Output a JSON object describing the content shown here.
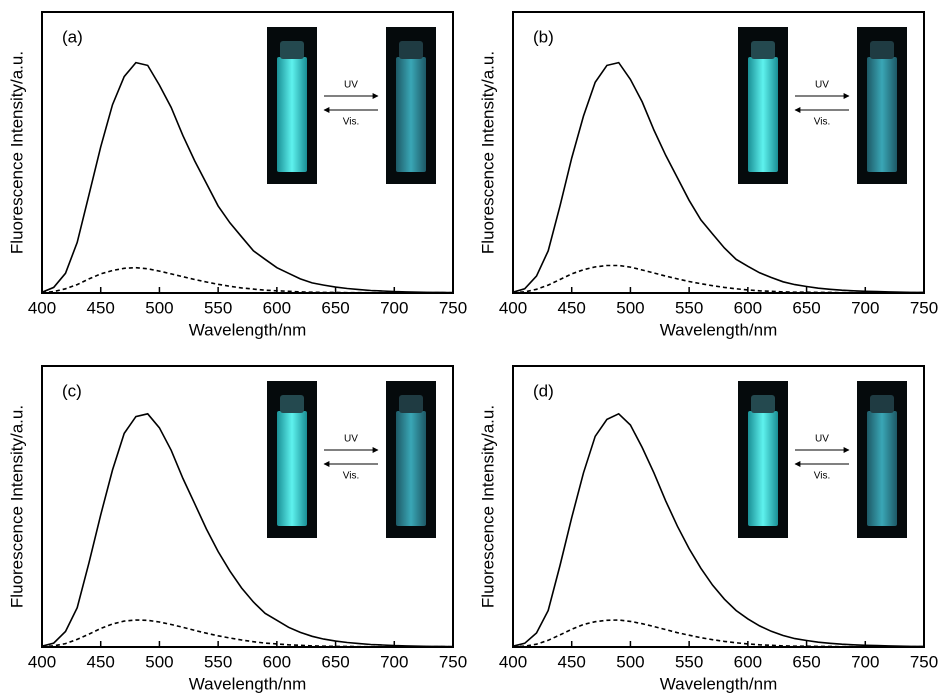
{
  "chart_data": [
    {
      "type": "line",
      "panel_label": "(a)",
      "xlabel": "Wavelength/nm",
      "ylabel": "Fluorescence Intensity/a.u.",
      "inset": {
        "forward": "UV",
        "backward": "Vis."
      },
      "x": [
        400,
        410,
        420,
        430,
        440,
        450,
        460,
        470,
        480,
        490,
        500,
        510,
        520,
        530,
        540,
        550,
        560,
        570,
        580,
        590,
        600,
        610,
        620,
        630,
        640,
        650,
        660,
        670,
        680,
        690,
        700,
        710,
        720,
        730,
        740,
        750
      ],
      "xlim": [
        400,
        750
      ],
      "xticks": [
        400,
        450,
        500,
        550,
        600,
        650,
        700,
        750
      ],
      "ylim": [
        0,
        100
      ],
      "series": [
        {
          "color": "#000000",
          "dashed": false,
          "values": [
            0.3,
            2,
            7,
            18,
            35,
            52,
            67,
            77,
            82,
            81,
            74,
            66,
            56,
            47,
            39,
            31,
            25,
            20,
            15,
            12,
            9,
            7,
            5,
            3.6,
            2.8,
            2.1,
            1.6,
            1.2,
            0.9,
            0.7,
            0.5,
            0.4,
            0.3,
            0.2,
            0.2,
            0.1
          ]
        },
        {
          "color": "#000000",
          "dashed": true,
          "values": [
            0.1,
            0.5,
            1.5,
            3,
            5,
            6.8,
            8,
            8.8,
            9,
            8.6,
            7.8,
            6.8,
            5.8,
            4.8,
            3.9,
            3.1,
            2.4,
            1.8,
            1.4,
            1.0,
            0.8,
            0.6,
            0.4,
            0.3,
            0.2,
            0.2,
            0.1,
            0.1,
            0.1,
            0.1,
            0.1,
            0.1,
            0.1,
            0.1,
            0.1,
            0.1
          ]
        }
      ]
    },
    {
      "type": "line",
      "panel_label": "(b)",
      "xlabel": "Wavelength/nm",
      "ylabel": "Fluorescence Intensity/a.u.",
      "inset": {
        "forward": "UV",
        "backward": "Vis."
      },
      "x": [
        400,
        410,
        420,
        430,
        440,
        450,
        460,
        470,
        480,
        490,
        500,
        510,
        520,
        530,
        540,
        550,
        560,
        570,
        580,
        590,
        600,
        610,
        620,
        630,
        640,
        650,
        660,
        670,
        680,
        690,
        700,
        710,
        720,
        730,
        740,
        750
      ],
      "xlim": [
        400,
        750
      ],
      "xticks": [
        400,
        450,
        500,
        550,
        600,
        650,
        700,
        750
      ],
      "ylim": [
        0,
        100
      ],
      "series": [
        {
          "color": "#000000",
          "dashed": false,
          "values": [
            0.3,
            1.5,
            6,
            15,
            31,
            48,
            63,
            75,
            81,
            82,
            76,
            68,
            58,
            49,
            41,
            33,
            26,
            21,
            16,
            12,
            9.5,
            7.2,
            5.5,
            4,
            3,
            2.3,
            1.7,
            1.3,
            1,
            0.8,
            0.6,
            0.5,
            0.4,
            0.3,
            0.2,
            0.2
          ]
        },
        {
          "color": "#000000",
          "dashed": true,
          "values": [
            0.1,
            0.4,
            1.3,
            2.8,
            4.8,
            6.8,
            8.3,
            9.3,
            9.8,
            9.8,
            9.2,
            8.2,
            7.1,
            6,
            5,
            4.1,
            3.3,
            2.6,
            2,
            1.5,
            1.1,
            0.8,
            0.6,
            0.4,
            0.3,
            0.3,
            0.2,
            0.2,
            0.1,
            0.1,
            0.1,
            0.1,
            0.1,
            0.1,
            0.1,
            0.1
          ]
        }
      ]
    },
    {
      "type": "line",
      "panel_label": "(c)",
      "xlabel": "Wavelength/nm",
      "ylabel": "Fluorescence Intensity/a.u.",
      "inset": {
        "forward": "UV",
        "backward": "Vis."
      },
      "x": [
        400,
        410,
        420,
        430,
        440,
        450,
        460,
        470,
        480,
        490,
        500,
        510,
        520,
        530,
        540,
        550,
        560,
        570,
        580,
        590,
        600,
        610,
        620,
        630,
        640,
        650,
        660,
        670,
        680,
        690,
        700,
        710,
        720,
        730,
        740,
        750
      ],
      "xlim": [
        400,
        750
      ],
      "xticks": [
        400,
        450,
        500,
        550,
        600,
        650,
        700,
        750
      ],
      "ylim": [
        0,
        100
      ],
      "series": [
        {
          "color": "#000000",
          "dashed": false,
          "values": [
            0.3,
            1.4,
            5.5,
            14,
            30,
            47,
            63,
            76,
            82,
            83,
            78,
            70,
            60,
            51,
            42,
            34,
            27,
            21,
            16,
            12,
            9.5,
            7,
            5.2,
            3.8,
            2.8,
            2.1,
            1.6,
            1.2,
            0.9,
            0.7,
            0.5,
            0.4,
            0.3,
            0.2,
            0.2,
            0.1
          ]
        },
        {
          "color": "#000000",
          "dashed": true,
          "values": [
            0.1,
            0.4,
            1.2,
            2.7,
            4.6,
            6.6,
            8.2,
            9.2,
            9.6,
            9.5,
            8.9,
            8,
            7,
            5.9,
            4.9,
            4,
            3.2,
            2.5,
            1.9,
            1.4,
            1.1,
            0.8,
            0.6,
            0.4,
            0.3,
            0.2,
            0.2,
            0.1,
            0.1,
            0.1,
            0.1,
            0.1,
            0.1,
            0.1,
            0.1,
            0.1
          ]
        }
      ]
    },
    {
      "type": "line",
      "panel_label": "(d)",
      "xlabel": "Wavelength/nm",
      "ylabel": "Fluorescence Intensity/a.u.",
      "inset": {
        "forward": "UV",
        "backward": "Vis."
      },
      "x": [
        400,
        410,
        420,
        430,
        440,
        450,
        460,
        470,
        480,
        490,
        500,
        510,
        520,
        530,
        540,
        550,
        560,
        570,
        580,
        590,
        600,
        610,
        620,
        630,
        640,
        650,
        660,
        670,
        680,
        690,
        700,
        710,
        720,
        730,
        740,
        750
      ],
      "xlim": [
        400,
        750
      ],
      "xticks": [
        400,
        450,
        500,
        550,
        600,
        650,
        700,
        750
      ],
      "ylim": [
        0,
        100
      ],
      "series": [
        {
          "color": "#000000",
          "dashed": false,
          "values": [
            0.3,
            1.3,
            5,
            13,
            29,
            46,
            62,
            75,
            81,
            83,
            79,
            71,
            62,
            52,
            43,
            35,
            28,
            22,
            17,
            13,
            10,
            7.5,
            5.6,
            4.1,
            3,
            2.3,
            1.7,
            1.3,
            1,
            0.8,
            0.6,
            0.5,
            0.4,
            0.3,
            0.2,
            0.2
          ]
        },
        {
          "color": "#000000",
          "dashed": true,
          "values": [
            0.1,
            0.3,
            1,
            2.4,
            4.3,
            6.3,
            8,
            9,
            9.5,
            9.6,
            9.1,
            8.3,
            7.3,
            6.2,
            5.1,
            4.2,
            3.3,
            2.6,
            2,
            1.5,
            1.1,
            0.8,
            0.6,
            0.4,
            0.3,
            0.3,
            0.2,
            0.2,
            0.1,
            0.1,
            0.1,
            0.1,
            0.1,
            0.1,
            0.1,
            0.1
          ]
        }
      ]
    }
  ]
}
